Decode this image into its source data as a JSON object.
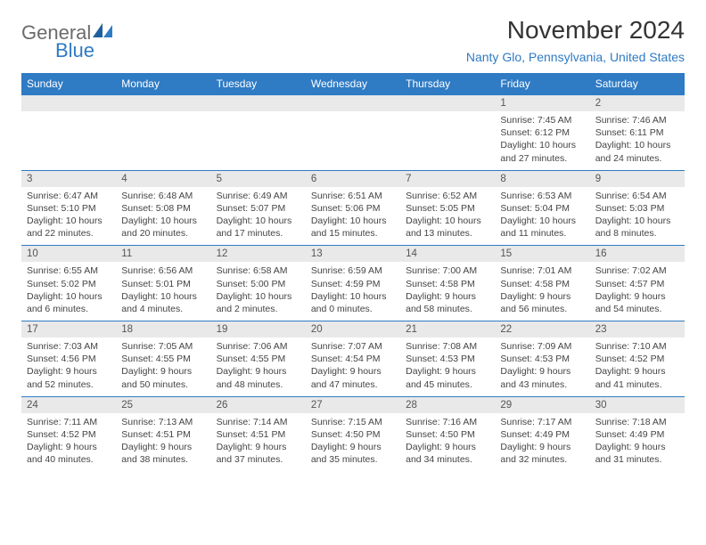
{
  "brand": {
    "text1": "General",
    "text2": "Blue"
  },
  "title": "November 2024",
  "location": "Nanty Glo, Pennsylvania, United States",
  "colors": {
    "header_bg": "#2f7bc4",
    "header_text": "#ffffff",
    "date_band_bg": "#e9e9e9",
    "border": "#2f7bc4",
    "body_text": "#444444",
    "title_text": "#333333",
    "location_text": "#2f7bc4",
    "page_bg": "#ffffff"
  },
  "typography": {
    "title_fontsize": 28,
    "location_fontsize": 14,
    "dayheader_fontsize": 12,
    "datenum_fontsize": 11.5,
    "cell_fontsize": 10.5
  },
  "day_headers": [
    "Sunday",
    "Monday",
    "Tuesday",
    "Wednesday",
    "Thursday",
    "Friday",
    "Saturday"
  ],
  "weeks": [
    {
      "dates": [
        "",
        "",
        "",
        "",
        "",
        "1",
        "2"
      ],
      "info": [
        null,
        null,
        null,
        null,
        null,
        {
          "sunrise": "Sunrise: 7:45 AM",
          "sunset": "Sunset: 6:12 PM",
          "daylight": "Daylight: 10 hours and 27 minutes."
        },
        {
          "sunrise": "Sunrise: 7:46 AM",
          "sunset": "Sunset: 6:11 PM",
          "daylight": "Daylight: 10 hours and 24 minutes."
        }
      ]
    },
    {
      "dates": [
        "3",
        "4",
        "5",
        "6",
        "7",
        "8",
        "9"
      ],
      "info": [
        {
          "sunrise": "Sunrise: 6:47 AM",
          "sunset": "Sunset: 5:10 PM",
          "daylight": "Daylight: 10 hours and 22 minutes."
        },
        {
          "sunrise": "Sunrise: 6:48 AM",
          "sunset": "Sunset: 5:08 PM",
          "daylight": "Daylight: 10 hours and 20 minutes."
        },
        {
          "sunrise": "Sunrise: 6:49 AM",
          "sunset": "Sunset: 5:07 PM",
          "daylight": "Daylight: 10 hours and 17 minutes."
        },
        {
          "sunrise": "Sunrise: 6:51 AM",
          "sunset": "Sunset: 5:06 PM",
          "daylight": "Daylight: 10 hours and 15 minutes."
        },
        {
          "sunrise": "Sunrise: 6:52 AM",
          "sunset": "Sunset: 5:05 PM",
          "daylight": "Daylight: 10 hours and 13 minutes."
        },
        {
          "sunrise": "Sunrise: 6:53 AM",
          "sunset": "Sunset: 5:04 PM",
          "daylight": "Daylight: 10 hours and 11 minutes."
        },
        {
          "sunrise": "Sunrise: 6:54 AM",
          "sunset": "Sunset: 5:03 PM",
          "daylight": "Daylight: 10 hours and 8 minutes."
        }
      ]
    },
    {
      "dates": [
        "10",
        "11",
        "12",
        "13",
        "14",
        "15",
        "16"
      ],
      "info": [
        {
          "sunrise": "Sunrise: 6:55 AM",
          "sunset": "Sunset: 5:02 PM",
          "daylight": "Daylight: 10 hours and 6 minutes."
        },
        {
          "sunrise": "Sunrise: 6:56 AM",
          "sunset": "Sunset: 5:01 PM",
          "daylight": "Daylight: 10 hours and 4 minutes."
        },
        {
          "sunrise": "Sunrise: 6:58 AM",
          "sunset": "Sunset: 5:00 PM",
          "daylight": "Daylight: 10 hours and 2 minutes."
        },
        {
          "sunrise": "Sunrise: 6:59 AM",
          "sunset": "Sunset: 4:59 PM",
          "daylight": "Daylight: 10 hours and 0 minutes."
        },
        {
          "sunrise": "Sunrise: 7:00 AM",
          "sunset": "Sunset: 4:58 PM",
          "daylight": "Daylight: 9 hours and 58 minutes."
        },
        {
          "sunrise": "Sunrise: 7:01 AM",
          "sunset": "Sunset: 4:58 PM",
          "daylight": "Daylight: 9 hours and 56 minutes."
        },
        {
          "sunrise": "Sunrise: 7:02 AM",
          "sunset": "Sunset: 4:57 PM",
          "daylight": "Daylight: 9 hours and 54 minutes."
        }
      ]
    },
    {
      "dates": [
        "17",
        "18",
        "19",
        "20",
        "21",
        "22",
        "23"
      ],
      "info": [
        {
          "sunrise": "Sunrise: 7:03 AM",
          "sunset": "Sunset: 4:56 PM",
          "daylight": "Daylight: 9 hours and 52 minutes."
        },
        {
          "sunrise": "Sunrise: 7:05 AM",
          "sunset": "Sunset: 4:55 PM",
          "daylight": "Daylight: 9 hours and 50 minutes."
        },
        {
          "sunrise": "Sunrise: 7:06 AM",
          "sunset": "Sunset: 4:55 PM",
          "daylight": "Daylight: 9 hours and 48 minutes."
        },
        {
          "sunrise": "Sunrise: 7:07 AM",
          "sunset": "Sunset: 4:54 PM",
          "daylight": "Daylight: 9 hours and 47 minutes."
        },
        {
          "sunrise": "Sunrise: 7:08 AM",
          "sunset": "Sunset: 4:53 PM",
          "daylight": "Daylight: 9 hours and 45 minutes."
        },
        {
          "sunrise": "Sunrise: 7:09 AM",
          "sunset": "Sunset: 4:53 PM",
          "daylight": "Daylight: 9 hours and 43 minutes."
        },
        {
          "sunrise": "Sunrise: 7:10 AM",
          "sunset": "Sunset: 4:52 PM",
          "daylight": "Daylight: 9 hours and 41 minutes."
        }
      ]
    },
    {
      "dates": [
        "24",
        "25",
        "26",
        "27",
        "28",
        "29",
        "30"
      ],
      "info": [
        {
          "sunrise": "Sunrise: 7:11 AM",
          "sunset": "Sunset: 4:52 PM",
          "daylight": "Daylight: 9 hours and 40 minutes."
        },
        {
          "sunrise": "Sunrise: 7:13 AM",
          "sunset": "Sunset: 4:51 PM",
          "daylight": "Daylight: 9 hours and 38 minutes."
        },
        {
          "sunrise": "Sunrise: 7:14 AM",
          "sunset": "Sunset: 4:51 PM",
          "daylight": "Daylight: 9 hours and 37 minutes."
        },
        {
          "sunrise": "Sunrise: 7:15 AM",
          "sunset": "Sunset: 4:50 PM",
          "daylight": "Daylight: 9 hours and 35 minutes."
        },
        {
          "sunrise": "Sunrise: 7:16 AM",
          "sunset": "Sunset: 4:50 PM",
          "daylight": "Daylight: 9 hours and 34 minutes."
        },
        {
          "sunrise": "Sunrise: 7:17 AM",
          "sunset": "Sunset: 4:49 PM",
          "daylight": "Daylight: 9 hours and 32 minutes."
        },
        {
          "sunrise": "Sunrise: 7:18 AM",
          "sunset": "Sunset: 4:49 PM",
          "daylight": "Daylight: 9 hours and 31 minutes."
        }
      ]
    }
  ]
}
